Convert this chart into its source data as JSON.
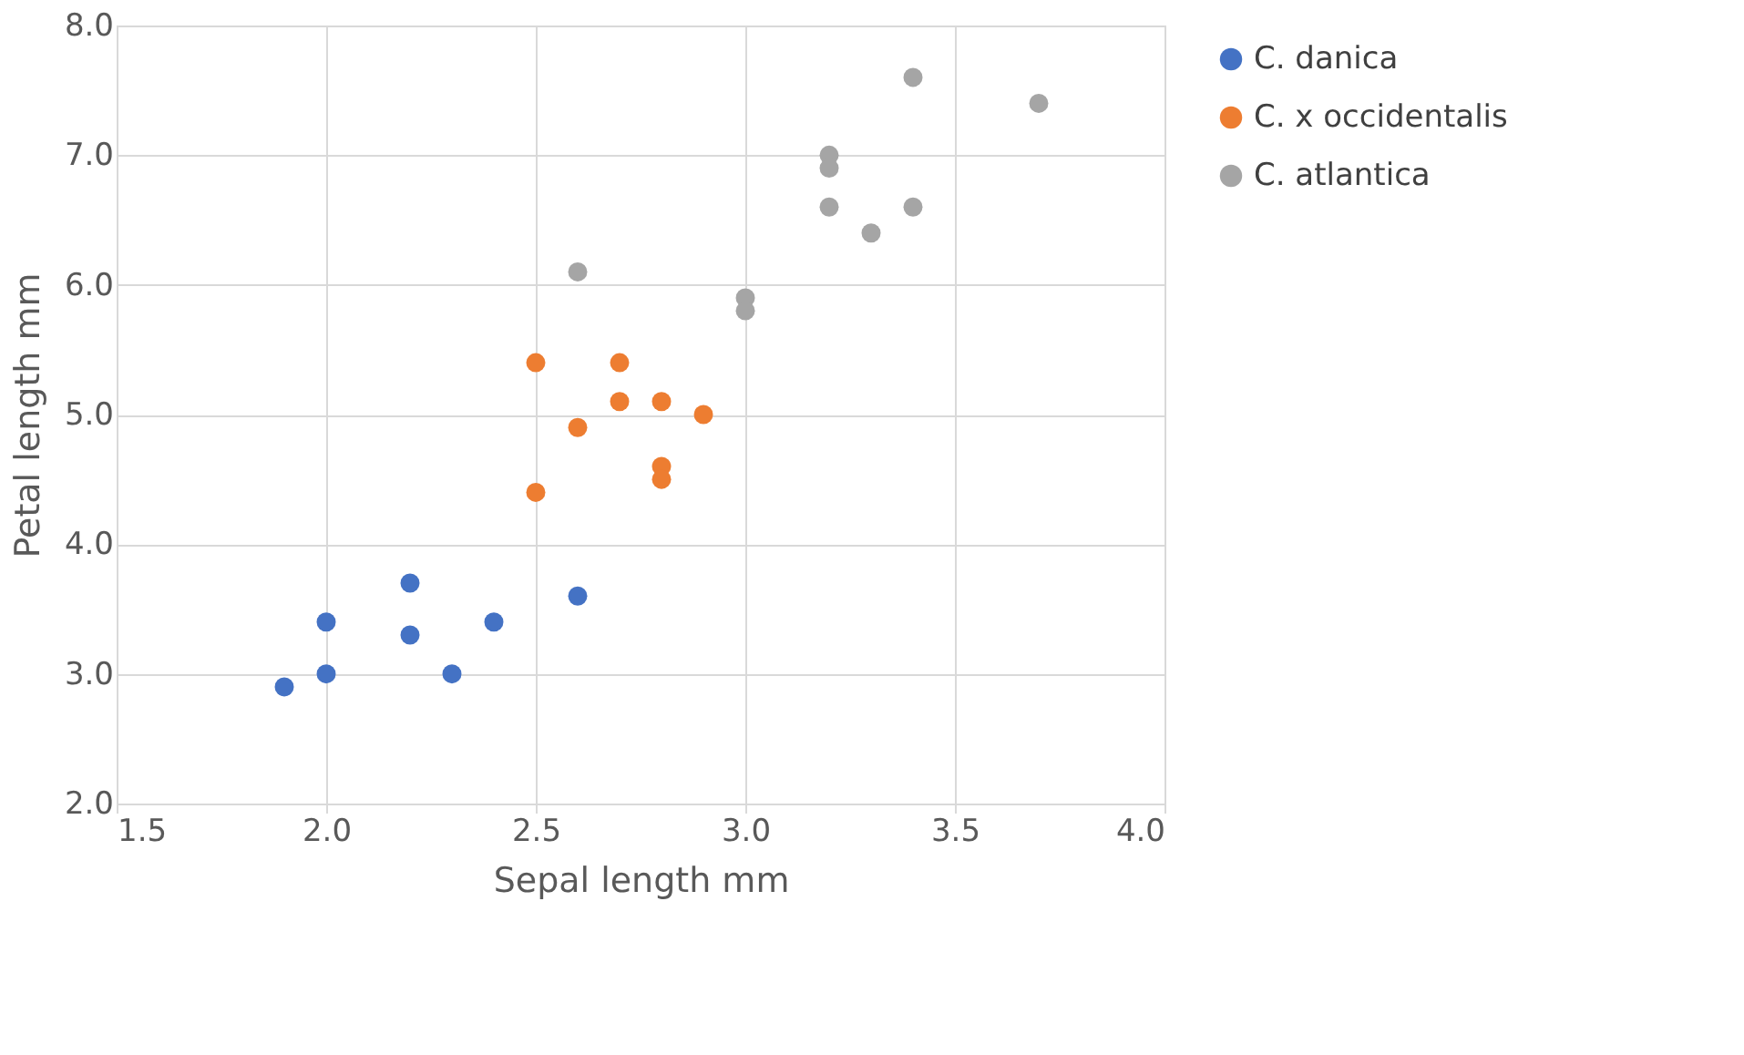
{
  "chart_data": {
    "type": "scatter",
    "xlabel": "Sepal length mm",
    "ylabel": "Petal length mm",
    "xlim": [
      1.5,
      4.0
    ],
    "ylim": [
      2.0,
      8.0
    ],
    "xticks": [
      {
        "value": 1.5,
        "label": "1.5"
      },
      {
        "value": 2,
        "label": "2.0"
      },
      {
        "value": 2.5,
        "label": "2.5"
      },
      {
        "value": 3,
        "label": "3.0"
      },
      {
        "value": 3.5,
        "label": "3.5"
      },
      {
        "value": 4,
        "label": "4.0"
      }
    ],
    "yticks": [
      {
        "value": 2,
        "label": "2.0"
      },
      {
        "value": 3,
        "label": "3.0"
      },
      {
        "value": 4,
        "label": "4.0"
      },
      {
        "value": 5,
        "label": "5.0"
      },
      {
        "value": 6,
        "label": "6.0"
      },
      {
        "value": 7,
        "label": "7.0"
      },
      {
        "value": 8,
        "label": "8.0"
      }
    ],
    "grid": true,
    "legend": "right",
    "marker": "circle",
    "series": [
      {
        "name": "C. danica",
        "color": "#4472c4",
        "x": [
          1.9,
          2.0,
          2.0,
          2.2,
          2.2,
          2.3,
          2.4,
          2.6
        ],
        "values": [
          2.9,
          3.4,
          3.0,
          3.7,
          3.3,
          3.0,
          3.4,
          3.6
        ]
      },
      {
        "name": "C. x occidentalis",
        "color": "#ed7d31",
        "x": [
          2.5,
          2.5,
          2.6,
          2.7,
          2.7,
          2.8,
          2.8,
          2.8,
          2.9
        ],
        "values": [
          5.4,
          4.4,
          4.9,
          5.4,
          5.1,
          5.1,
          4.6,
          4.5,
          5.0
        ]
      },
      {
        "name": "C. atlantica",
        "color": "#a5a5a5",
        "x": [
          2.6,
          3.0,
          3.0,
          3.2,
          3.2,
          3.2,
          3.3,
          3.4,
          3.4,
          3.7
        ],
        "values": [
          6.1,
          5.9,
          5.8,
          7.0,
          6.9,
          6.6,
          6.4,
          7.6,
          6.6,
          7.4
        ]
      }
    ]
  }
}
